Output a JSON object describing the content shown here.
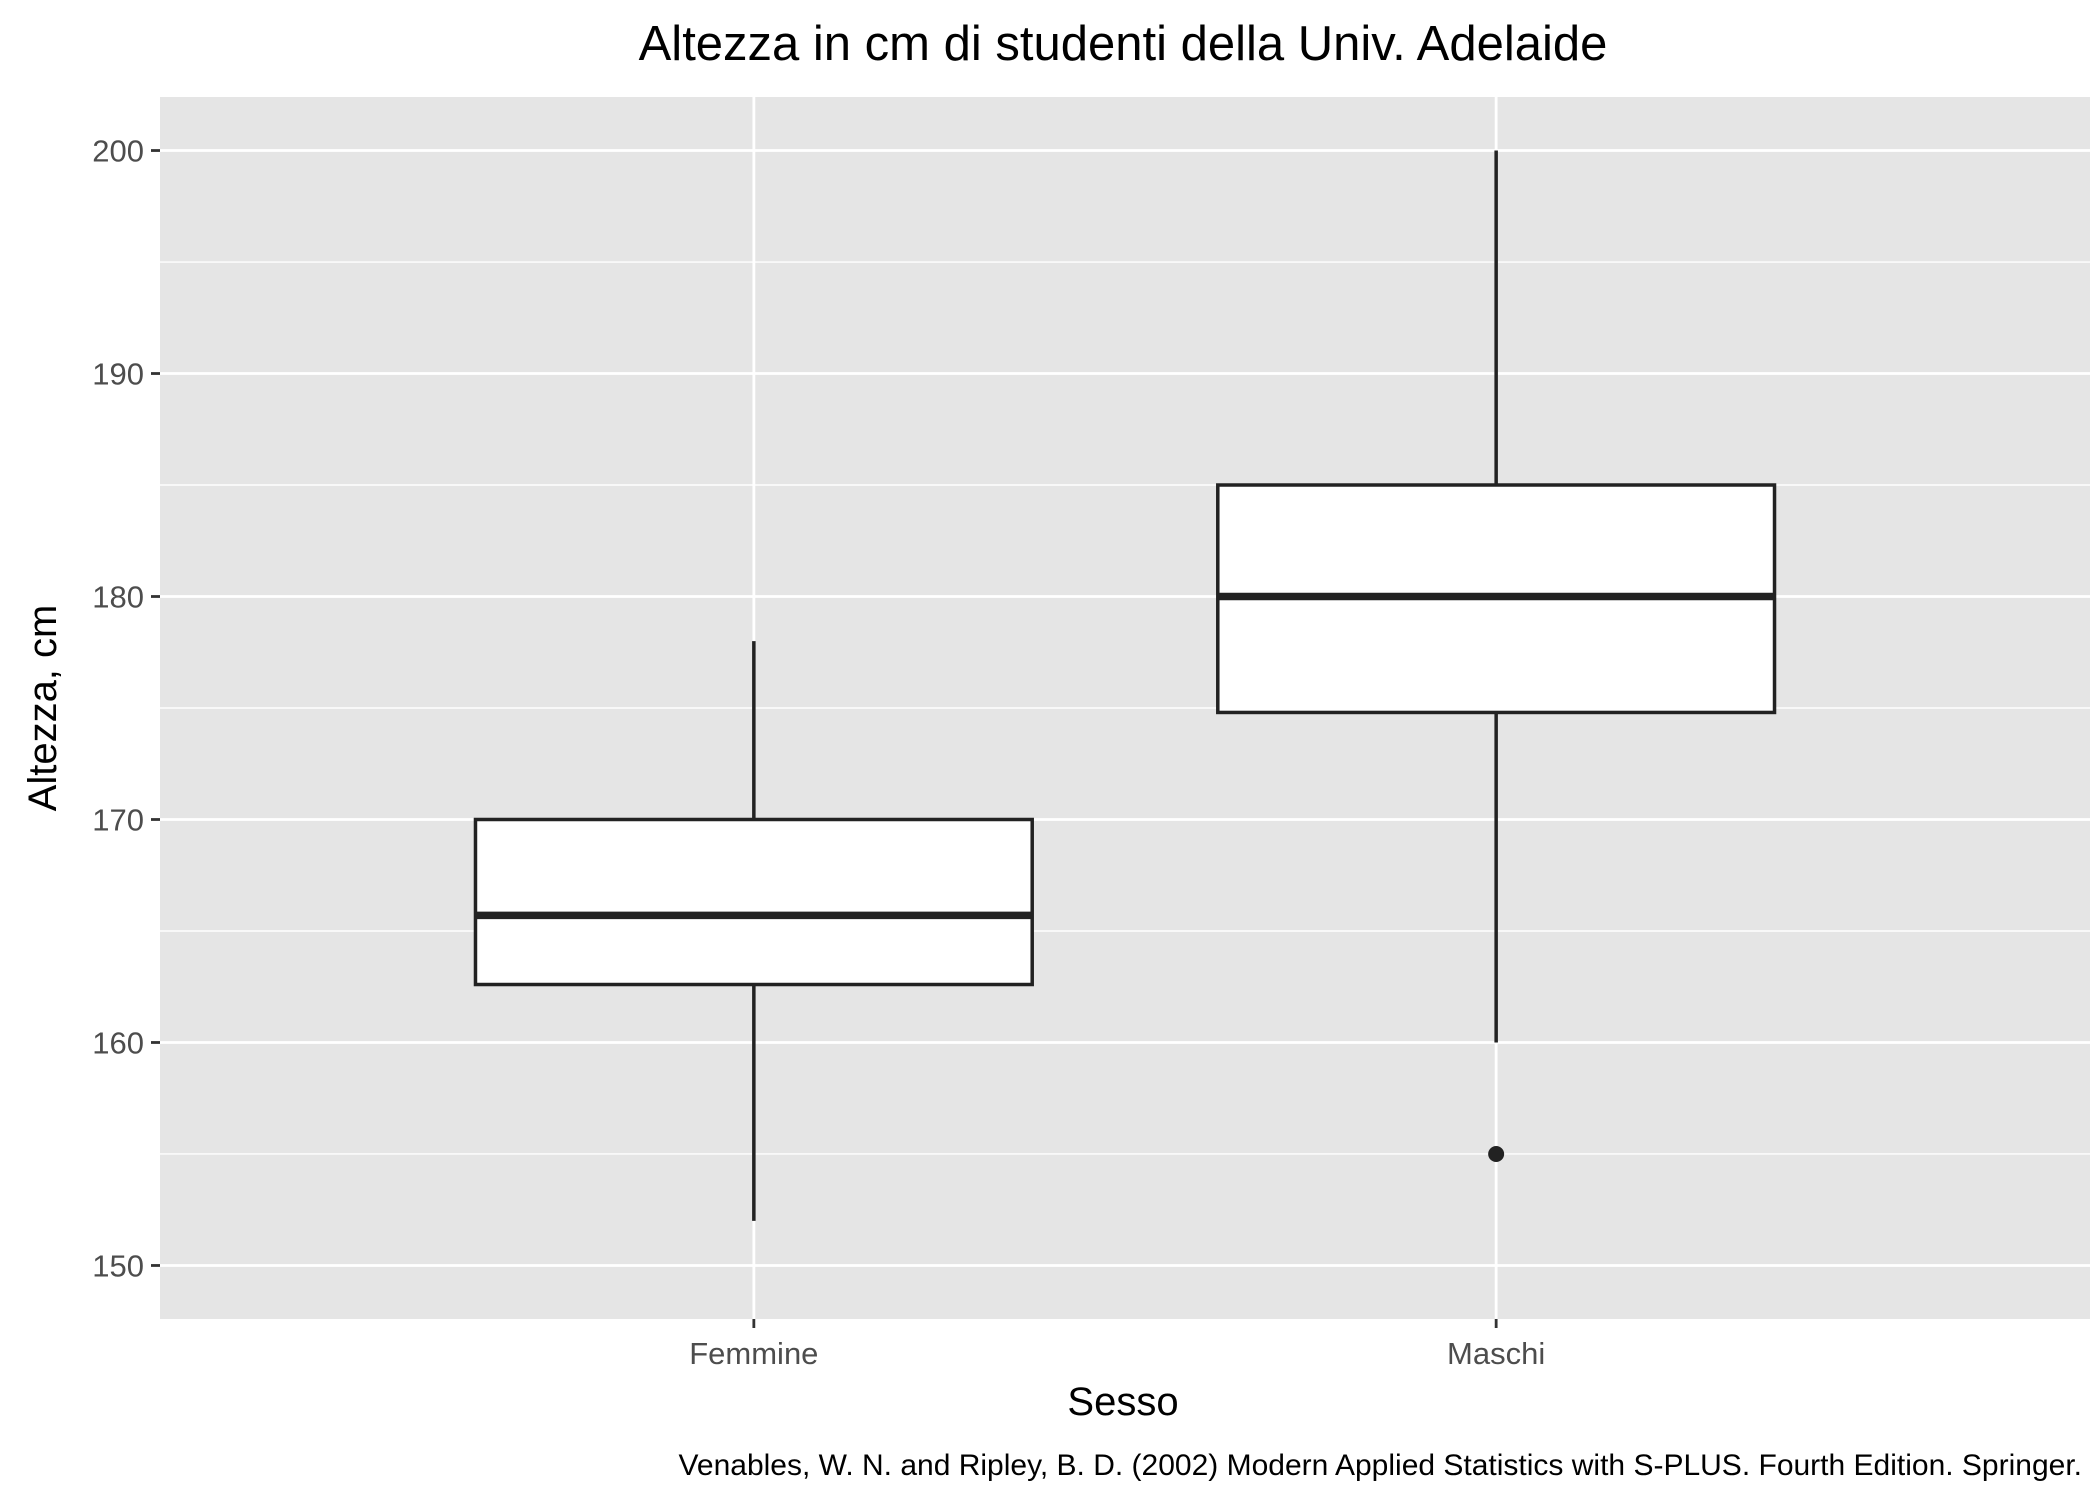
{
  "chart_data": {
    "type": "boxplot",
    "title": "Altezza in cm di studenti della Univ. Adelaide",
    "xlabel": "Sesso",
    "ylabel": "Altezza, cm",
    "caption": "Venables, W. N. and Ripley, B. D. (2002) Modern Applied Statistics with S-PLUS. Fourth Edition. Springer.",
    "categories": [
      "Femmine",
      "Maschi"
    ],
    "ylim": [
      147.6,
      202.4
    ],
    "yticks": [
      150,
      160,
      170,
      180,
      190,
      200
    ],
    "grid": true,
    "groups": [
      {
        "category": "Femmine",
        "whisker_low": 152.0,
        "q1": 162.6,
        "median": 165.7,
        "q3": 170.0,
        "whisker_high": 178.0,
        "outliers": []
      },
      {
        "category": "Maschi",
        "whisker_low": 160.0,
        "q1": 174.8,
        "median": 180.0,
        "q3": 185.0,
        "whisker_high": 200.0,
        "outliers": [
          155.0
        ]
      }
    ],
    "colors": {
      "panel": "#e5e5e5",
      "grid": "#ffffff",
      "box_fill": "#ffffff",
      "box_line": "#222222"
    }
  }
}
